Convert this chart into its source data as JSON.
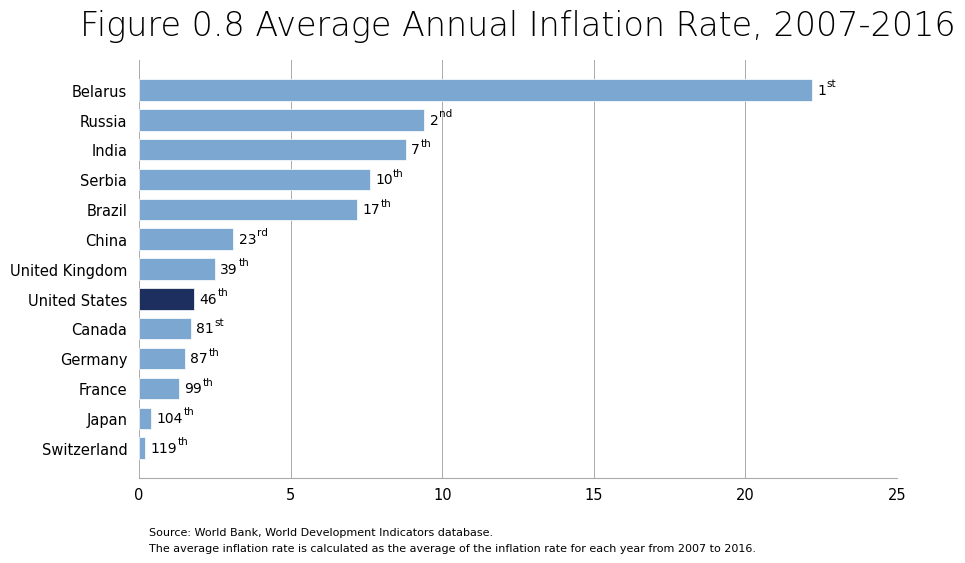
{
  "title": "Figure 0.8 Average Annual Inflation Rate, 2007-2016",
  "countries": [
    "Belarus",
    "Russia",
    "India",
    "Serbia",
    "Brazil",
    "China",
    "United Kingdom",
    "United States",
    "Canada",
    "Germany",
    "France",
    "Japan",
    "Switzerland"
  ],
  "values": [
    22.2,
    9.4,
    8.8,
    7.6,
    7.2,
    3.1,
    2.5,
    1.8,
    1.7,
    1.5,
    1.3,
    0.4,
    0.2
  ],
  "ranks": [
    "1st",
    "2nd",
    "7th",
    "10th",
    "17th",
    "23rd",
    "39th",
    "46th",
    "81st",
    "87th",
    "99th",
    "104th",
    "119th"
  ],
  "rank_nums": [
    "1",
    "2",
    "7",
    "10",
    "17",
    "23",
    "39",
    "46",
    "81",
    "87",
    "99",
    "104",
    "119"
  ],
  "rank_sufs": [
    "st",
    "nd",
    "th",
    "th",
    "th",
    "rd",
    "th",
    "th",
    "st",
    "th",
    "th",
    "th",
    "th"
  ],
  "bar_colors": [
    "#7BA7D0",
    "#7BA7D0",
    "#7BA7D0",
    "#7BA7D0",
    "#7BA7D0",
    "#7BA7D0",
    "#7BA7D0",
    "#1C2F5E",
    "#7BA7D0",
    "#7BA7D0",
    "#7BA7D0",
    "#7BA7D0",
    "#7BA7D0"
  ],
  "xlim": [
    0,
    25
  ],
  "xticks": [
    0,
    5,
    10,
    15,
    20,
    25
  ],
  "background_color": "#ffffff",
  "source_text1": "Source: World Bank, World Development Indicators database.",
  "source_text2": "The average inflation rate is calculated as the average of the inflation rate for each year from 2007 to 2016.",
  "title_fontsize": 24,
  "label_fontsize": 10,
  "tick_fontsize": 10.5
}
